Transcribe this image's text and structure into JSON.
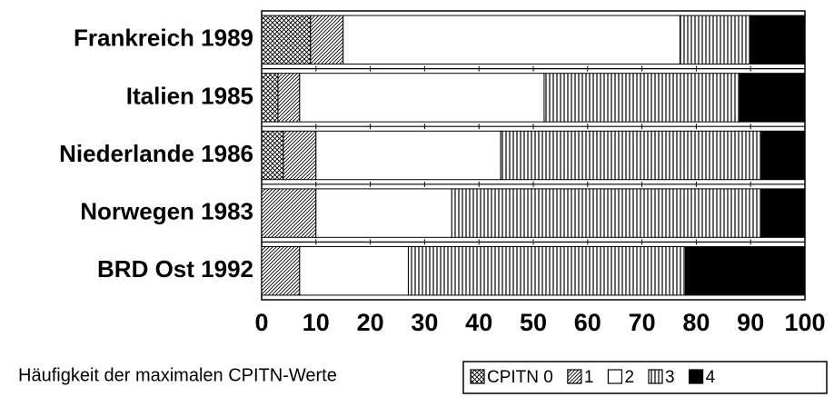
{
  "chart_data": {
    "type": "stacked-barh",
    "xlabel": "Häufigkeit der maximalen CPITN-Werte",
    "categories": [
      "Frankreich 1989",
      "Italien 1985",
      "Niederlande 1986",
      "Norwegen 1983",
      "BRD Ost 1992"
    ],
    "series": [
      {
        "name": "CPITN 0",
        "pattern": "crosshatch",
        "values": [
          9,
          3,
          4,
          0,
          0
        ]
      },
      {
        "name": "1",
        "pattern": "diagonal",
        "values": [
          6,
          4,
          6,
          10,
          7
        ]
      },
      {
        "name": "2",
        "pattern": "none",
        "values": [
          62,
          45,
          34,
          25,
          20
        ]
      },
      {
        "name": "3",
        "pattern": "vertical",
        "values": [
          13,
          36,
          48,
          57,
          51
        ]
      },
      {
        "name": "4",
        "pattern": "solid",
        "values": [
          10,
          12,
          8,
          8,
          22
        ]
      }
    ],
    "color": "#000000",
    "xlim": [
      0,
      100
    ],
    "xticks": [
      0,
      10,
      20,
      30,
      40,
      50,
      60,
      70,
      80,
      90,
      100
    ]
  }
}
